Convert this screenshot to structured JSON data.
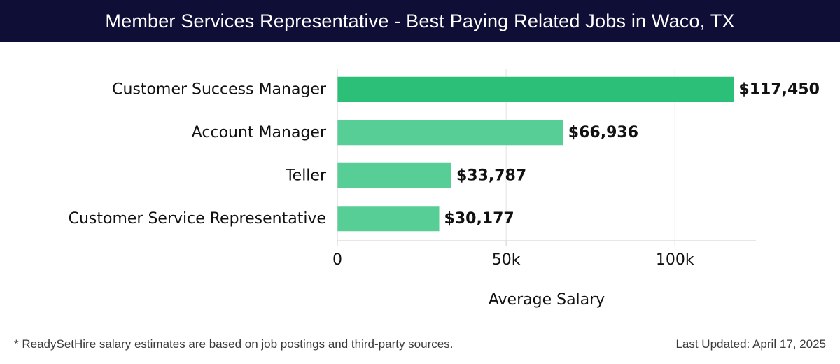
{
  "header": {
    "title": "Member Services Representative - Best Paying Related Jobs in Waco, TX"
  },
  "footer": {
    "note": "* ReadySetHire salary estimates are based on job postings and third-party sources.",
    "updated": "Last Updated: April 17, 2025"
  },
  "colors": {
    "title_bg": "#0f0e36",
    "bar_top": "#2bbf77",
    "bar_other": "#57ce96",
    "grid": "#e3e3e3"
  },
  "chart_data": {
    "type": "bar",
    "orientation": "horizontal",
    "title": "Member Services Representative - Best Paying Related Jobs in Waco, TX",
    "categories": [
      "Customer Success Manager",
      "Account Manager",
      "Teller",
      "Customer Service Representative"
    ],
    "values": [
      117450,
      66936,
      33787,
      30177
    ],
    "value_labels": [
      "$117,450",
      "$66,936",
      "$33,787",
      "$30,177"
    ],
    "xlabel": "Average Salary",
    "ylabel": "",
    "xlim": [
      0,
      124000
    ],
    "xticks": [
      0,
      50000,
      100000
    ],
    "xtick_labels": [
      "0",
      "50k",
      "100k"
    ],
    "grid": true,
    "legend": "none"
  }
}
